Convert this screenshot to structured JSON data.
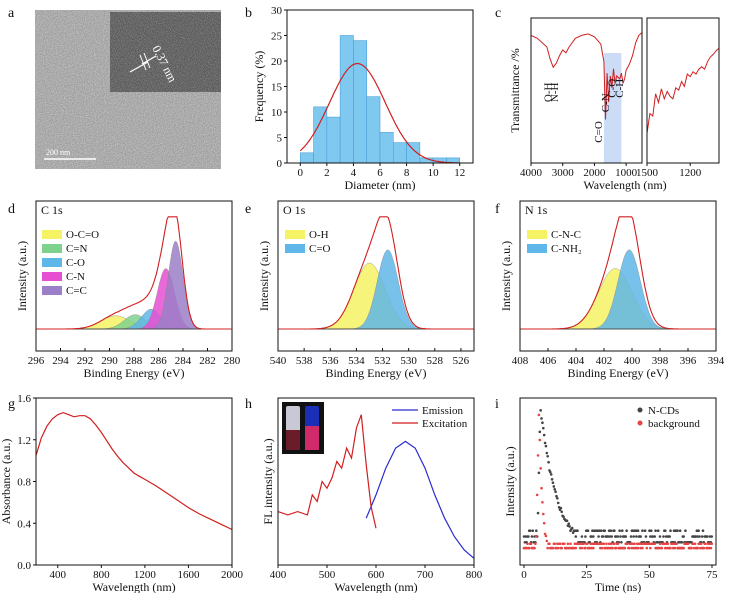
{
  "figure": {
    "panel_letters": [
      "a",
      "b",
      "c",
      "d",
      "e",
      "f",
      "g",
      "h",
      "i"
    ],
    "tem": {
      "scale_bar_text": "200 nm",
      "lattice_spacing_text": "0.37 nm"
    }
  },
  "chart_data": [
    {
      "id": "b",
      "type": "bar",
      "xlabel": "Diameter (nm)",
      "ylabel": "Frequency (%)",
      "xlim": [
        -1,
        13
      ],
      "ylim": [
        0,
        30
      ],
      "xticks": [
        0,
        2,
        4,
        6,
        8,
        10,
        12
      ],
      "yticks": [
        0,
        5,
        10,
        15,
        20,
        25,
        30
      ],
      "bin_width": 1,
      "bins_start": [
        0,
        1,
        2,
        3,
        4,
        5,
        6,
        7,
        8,
        9,
        10,
        11
      ],
      "values": [
        2,
        11,
        9,
        25,
        24,
        13,
        6,
        4,
        4,
        1,
        1,
        1
      ],
      "fit": {
        "type": "gaussian",
        "center": 4.3,
        "sigma": 2.1,
        "peak": 19.5
      },
      "colors": {
        "bar": "#7fc8f0",
        "bar_edge": "#4a9fd8",
        "fit": "#d11f1f"
      }
    },
    {
      "id": "c",
      "type": "line",
      "xlabel": "Wavelength (nm)",
      "ylabel": "Transmittance /%",
      "left_xlim": [
        4000,
        500
      ],
      "left_xticks": [
        4000,
        3000,
        2000,
        1000
      ],
      "right_xlim": [
        1500,
        1000
      ],
      "right_xticks": [
        1500,
        1200
      ],
      "annotations": [
        "O-H",
        "N-H",
        "C=O",
        "C-N",
        "C-O",
        "C-H"
      ],
      "left_series": [
        [
          4000,
          0.88
        ],
        [
          3800,
          0.86
        ],
        [
          3500,
          0.8
        ],
        [
          3400,
          0.72
        ],
        [
          3300,
          0.66
        ],
        [
          3200,
          0.69
        ],
        [
          3100,
          0.74
        ],
        [
          3000,
          0.78
        ],
        [
          2900,
          0.76
        ],
        [
          2800,
          0.8
        ],
        [
          2600,
          0.86
        ],
        [
          2400,
          0.88
        ],
        [
          2200,
          0.89
        ],
        [
          2000,
          0.87
        ],
        [
          1800,
          0.82
        ],
        [
          1700,
          0.7
        ],
        [
          1650,
          0.3
        ],
        [
          1600,
          0.62
        ],
        [
          1550,
          0.42
        ],
        [
          1500,
          0.6
        ],
        [
          1450,
          0.52
        ],
        [
          1400,
          0.65
        ],
        [
          1350,
          0.55
        ],
        [
          1300,
          0.6
        ],
        [
          1200,
          0.58
        ],
        [
          1150,
          0.62
        ],
        [
          1100,
          0.55
        ],
        [
          1050,
          0.58
        ],
        [
          1000,
          0.64
        ],
        [
          900,
          0.68
        ],
        [
          800,
          0.74
        ],
        [
          700,
          0.83
        ],
        [
          600,
          0.88
        ],
        [
          500,
          0.9
        ]
      ],
      "right_series": [
        [
          1500,
          0.3
        ],
        [
          1480,
          0.46
        ],
        [
          1460,
          0.44
        ],
        [
          1440,
          0.62
        ],
        [
          1420,
          0.55
        ],
        [
          1400,
          0.66
        ],
        [
          1380,
          0.58
        ],
        [
          1360,
          0.64
        ],
        [
          1340,
          0.6
        ],
        [
          1320,
          0.58
        ],
        [
          1300,
          0.67
        ],
        [
          1280,
          0.65
        ],
        [
          1260,
          0.72
        ],
        [
          1240,
          0.68
        ],
        [
          1220,
          0.78
        ],
        [
          1200,
          0.76
        ],
        [
          1180,
          0.8
        ],
        [
          1160,
          0.78
        ],
        [
          1140,
          0.82
        ],
        [
          1120,
          0.84
        ],
        [
          1100,
          0.82
        ],
        [
          1080,
          0.88
        ],
        [
          1060,
          0.92
        ],
        [
          1040,
          0.94
        ],
        [
          1020,
          0.97
        ],
        [
          1000,
          0.99
        ]
      ],
      "colors": {
        "line": "#d11f1f",
        "highlight": "#aac4f0"
      }
    },
    {
      "id": "d",
      "type": "area",
      "title": "C 1s",
      "xlabel": "Binding Energy (eV)",
      "ylabel": "Intensity (a.u.)",
      "xlim": [
        296,
        280
      ],
      "xticks": [
        296,
        294,
        292,
        290,
        288,
        286,
        284,
        282,
        280
      ],
      "legend": [
        "O-C=O",
        "C=N",
        "C-O",
        "C-N",
        "C=C"
      ],
      "components": [
        {
          "name": "O-C=O",
          "center": 289.5,
          "sigma": 1.2,
          "height": 0.12,
          "color": "#f5f264"
        },
        {
          "name": "C=N",
          "center": 287.9,
          "sigma": 0.9,
          "height": 0.13,
          "color": "#7fd28e"
        },
        {
          "name": "C-O",
          "center": 286.6,
          "sigma": 0.8,
          "height": 0.18,
          "color": "#5fb6e8"
        },
        {
          "name": "C-N",
          "center": 285.4,
          "sigma": 0.7,
          "height": 0.55,
          "color": "#e64fd1"
        },
        {
          "name": "C=C",
          "center": 284.6,
          "sigma": 0.6,
          "height": 0.8,
          "color": "#9b7fc8"
        }
      ],
      "colors": {
        "envelope": "#d11f1f",
        "baseline": "#333333"
      }
    },
    {
      "id": "e",
      "type": "area",
      "title": "O 1s",
      "xlabel": "Binding Energy (eV)",
      "ylabel": "Intensity (a.u.)",
      "xlim": [
        540,
        525
      ],
      "xticks": [
        540,
        538,
        536,
        534,
        532,
        530,
        528,
        526
      ],
      "legend": [
        "O-H",
        "C=O"
      ],
      "components": [
        {
          "name": "O-H",
          "center": 533.0,
          "sigma": 1.2,
          "height": 0.6,
          "color": "#f5f264"
        },
        {
          "name": "C=O",
          "center": 531.6,
          "sigma": 0.8,
          "height": 0.72,
          "color": "#5fb6e8"
        }
      ],
      "colors": {
        "envelope": "#d11f1f",
        "baseline": "#333333"
      }
    },
    {
      "id": "f",
      "type": "area",
      "title": "N 1s",
      "xlabel": "Binding Energy (eV)",
      "ylabel": "Intensity (a.u.)",
      "xlim": [
        408,
        394
      ],
      "xticks": [
        408,
        406,
        404,
        402,
        400,
        398,
        396,
        394
      ],
      "legend": [
        "C-N-C",
        "C-NH₂"
      ],
      "components": [
        {
          "name": "C-N-C",
          "center": 401.2,
          "sigma": 1.2,
          "height": 0.55,
          "color": "#f5f264"
        },
        {
          "name": "C-NH₂",
          "center": 400.2,
          "sigma": 0.8,
          "height": 0.72,
          "color": "#5fb6e8"
        }
      ],
      "colors": {
        "envelope": "#d11f1f",
        "baseline": "#333333"
      }
    },
    {
      "id": "g",
      "type": "line",
      "xlabel": "Wavelength (nm)",
      "ylabel": "Absorbance (a.u.)",
      "xlim": [
        200,
        2000
      ],
      "ylim": [
        0.0,
        1.6
      ],
      "xticks": [
        400,
        800,
        1200,
        1600,
        2000
      ],
      "yticks": [
        0.0,
        0.4,
        0.8,
        1.2,
        1.6
      ],
      "x": [
        200,
        250,
        300,
        350,
        400,
        450,
        500,
        550,
        600,
        650,
        700,
        750,
        800,
        850,
        900,
        950,
        1000,
        1050,
        1100,
        1150,
        1200,
        1300,
        1400,
        1500,
        1600,
        1700,
        1800,
        1900,
        2000
      ],
      "y": [
        1.05,
        1.22,
        1.33,
        1.4,
        1.44,
        1.46,
        1.44,
        1.42,
        1.43,
        1.43,
        1.4,
        1.34,
        1.27,
        1.19,
        1.11,
        1.04,
        0.98,
        0.93,
        0.88,
        0.85,
        0.82,
        0.76,
        0.69,
        0.62,
        0.55,
        0.49,
        0.44,
        0.39,
        0.34
      ],
      "colors": {
        "line": "#d11f1f"
      }
    },
    {
      "id": "h",
      "type": "line",
      "xlabel": "Wavelength (nm)",
      "ylabel": "FL intensity (a.u.)",
      "xlim": [
        400,
        800
      ],
      "xticks": [
        400,
        500,
        600,
        700,
        800
      ],
      "legend": [
        "Emission",
        "Excitation"
      ],
      "series": [
        {
          "name": "Emission",
          "color": "#2a2ad1",
          "x": [
            580,
            600,
            620,
            640,
            660,
            680,
            700,
            720,
            740,
            760,
            780,
            800
          ],
          "y": [
            0.28,
            0.42,
            0.58,
            0.7,
            0.74,
            0.7,
            0.58,
            0.42,
            0.28,
            0.17,
            0.09,
            0.04
          ]
        },
        {
          "name": "Excitation",
          "color": "#d11f1f",
          "x": [
            400,
            420,
            440,
            460,
            470,
            480,
            490,
            500,
            510,
            520,
            530,
            540,
            550,
            560,
            570,
            580,
            590,
            600
          ],
          "y": [
            0.32,
            0.3,
            0.32,
            0.3,
            0.42,
            0.38,
            0.5,
            0.46,
            0.52,
            0.62,
            0.58,
            0.7,
            0.64,
            0.82,
            0.9,
            0.6,
            0.35,
            0.22
          ]
        }
      ]
    },
    {
      "id": "i",
      "type": "scatter",
      "xlabel": "Time (ns)",
      "ylabel": "Intensity (a.u.)",
      "xlim": [
        0,
        75
      ],
      "xticks": [
        0,
        25,
        50,
        75
      ],
      "legend": [
        "N-CDs",
        "background"
      ],
      "series": [
        {
          "name": "N-CDs",
          "color": "#444444",
          "decay_tau": 6.5,
          "peak_time": 6.5,
          "floor": 0.08
        },
        {
          "name": "background",
          "color": "#e64545",
          "decay_tau": 1.2,
          "peak_time": 6.0,
          "floor": 0.02
        }
      ]
    }
  ]
}
